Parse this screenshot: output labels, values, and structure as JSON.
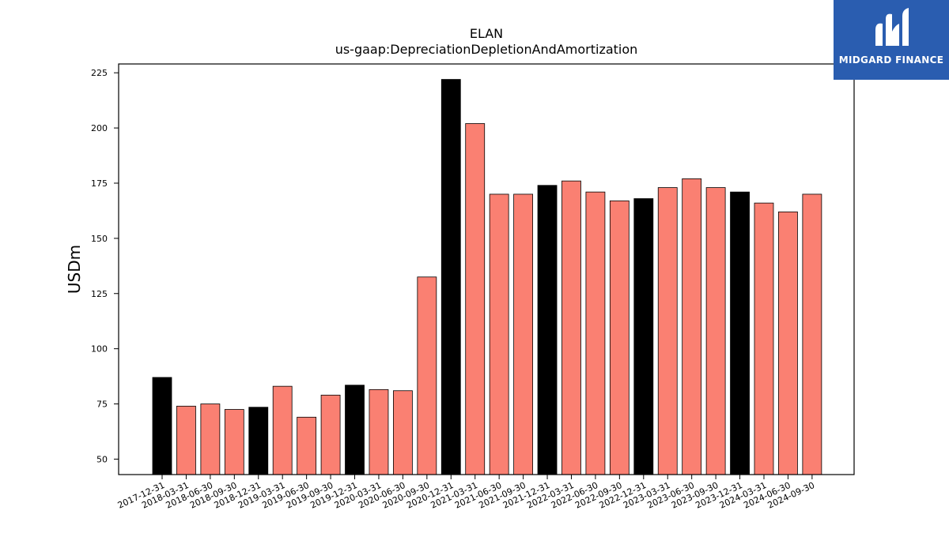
{
  "chart_data": {
    "type": "bar",
    "title": "ELAN",
    "subtitle": "us-gaap:DepreciationDepletionAndAmortization",
    "xlabel": "",
    "ylabel": "USDm",
    "ylim": [
      43,
      229
    ],
    "yticks": [
      50,
      75,
      100,
      125,
      150,
      175,
      200,
      225
    ],
    "categories": [
      "2017-12-31",
      "2018-03-31",
      "2018-06-30",
      "2018-09-30",
      "2018-12-31",
      "2019-03-31",
      "2019-06-30",
      "2019-09-30",
      "2019-12-31",
      "2020-03-31",
      "2020-06-30",
      "2020-09-30",
      "2020-12-31",
      "2021-03-31",
      "2021-06-30",
      "2021-09-30",
      "2021-12-31",
      "2022-03-31",
      "2022-06-30",
      "2022-09-30",
      "2022-12-31",
      "2023-03-31",
      "2023-06-30",
      "2023-09-30",
      "2023-12-31",
      "2024-03-31",
      "2024-06-30",
      "2024-09-30"
    ],
    "values": [
      87,
      74,
      75,
      72.5,
      73.5,
      83,
      69,
      79,
      83.5,
      81.5,
      81,
      132.5,
      222,
      202,
      170,
      170,
      174,
      176,
      171,
      167,
      168,
      173,
      177,
      173,
      171,
      166,
      162,
      170
    ],
    "colors": {
      "annual": "#000000",
      "quarterly": "#fa8072",
      "edge": "#000000"
    },
    "annual_flags": [
      true,
      false,
      false,
      false,
      true,
      false,
      false,
      false,
      true,
      false,
      false,
      false,
      true,
      false,
      false,
      false,
      true,
      false,
      false,
      false,
      true,
      false,
      false,
      false,
      true,
      false,
      false,
      false
    ],
    "grid": false,
    "legend": "none"
  },
  "brand": {
    "name": "MIDGARD FINANCE",
    "background": "#2a5db0",
    "logo_icon": "midgard-logo-icon"
  }
}
